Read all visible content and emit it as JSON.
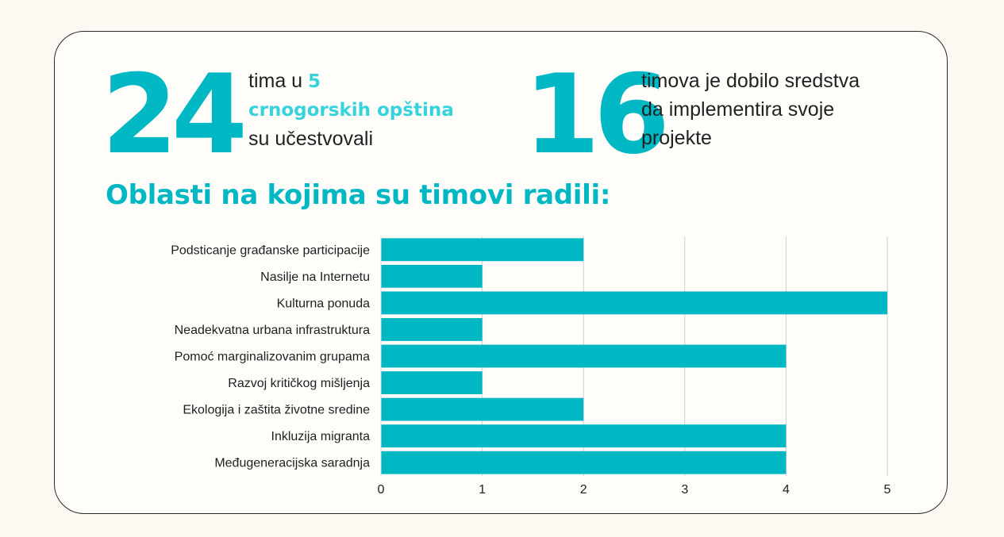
{
  "stats": [
    {
      "number": "24",
      "line1_pre": "tima u ",
      "line1_hl": "5",
      "line2_hl": "crnogorskih opština",
      "line3": "su učestvovali"
    },
    {
      "number": "16",
      "line1": "timova je dobilo sredstva",
      "line2": "da implementira svoje",
      "line3": "projekte"
    }
  ],
  "heading": "Oblasti na kojima su timovi radili:",
  "colors": {
    "accent": "#00b8c4",
    "highlight": "#36d3dd",
    "bar": "#00b8c4",
    "grid": "#cfcfcf"
  },
  "chart_data": {
    "type": "bar",
    "orientation": "horizontal",
    "title": "Oblasti na kojima su timovi radili:",
    "categories": [
      "Podsticanje građanske participacije",
      "Nasilje na Internetu",
      "Kulturna ponuda",
      "Neadekvatna urbana infrastruktura",
      "Pomoć marginalizovanim grupama",
      "Razvoj kritičkog mišljenja",
      "Ekologija i zaštita životne sredine",
      "Inkluzija migranta",
      "Međugeneracijska saradnja"
    ],
    "values": [
      2,
      1,
      5,
      1,
      4,
      1,
      2,
      4,
      4
    ],
    "xlim": [
      0,
      5
    ],
    "xticks": [
      0,
      1,
      2,
      3,
      4,
      5
    ],
    "xlabel": "",
    "ylabel": "",
    "grid": true,
    "legend": "none"
  }
}
